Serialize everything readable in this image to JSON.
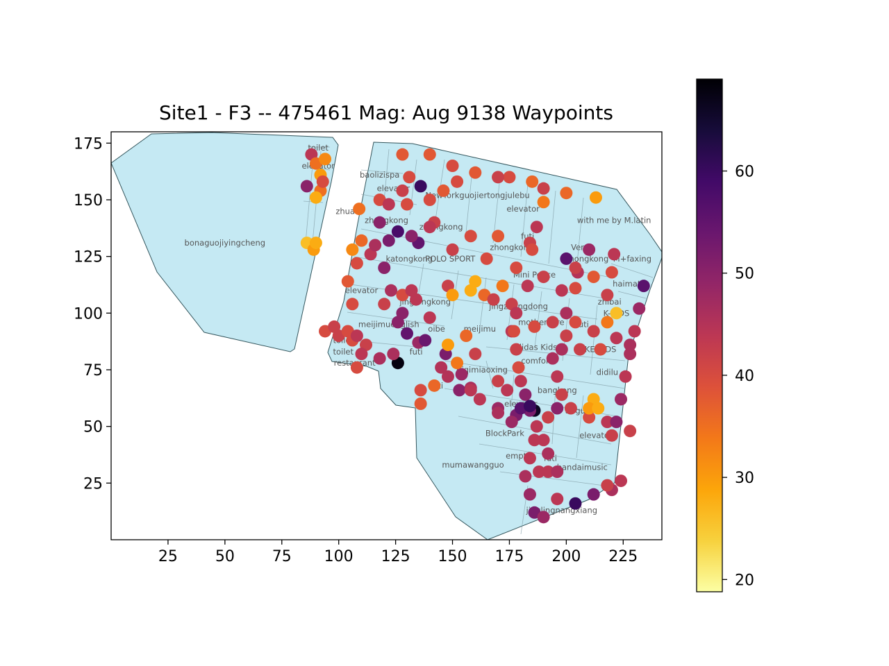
{
  "chart_data": {
    "type": "scatter",
    "title": "Site1 - F3 -- 475461 Mag: Aug 9138 Waypoints",
    "xlabel": "",
    "ylabel": "",
    "xlim": [
      0,
      242
    ],
    "ylim": [
      0,
      180
    ],
    "xticks": [
      25,
      50,
      75,
      100,
      125,
      150,
      175,
      200,
      225
    ],
    "yticks": [
      25,
      50,
      75,
      100,
      125,
      150,
      175
    ],
    "colorbar": {
      "colormap": "inferno_r",
      "range": [
        18.8,
        69.0
      ],
      "ticks": [
        20,
        30,
        40,
        50,
        60
      ]
    },
    "floor_plan_color": "#c5e9f3",
    "shop_labels": [
      {
        "text": "toilet",
        "x": 91,
        "y": 173
      },
      {
        "text": "elevator",
        "x": 91,
        "y": 165
      },
      {
        "text": "bonaguojiyingcheng",
        "x": 50,
        "y": 131
      },
      {
        "text": "baolizispa",
        "x": 118,
        "y": 161
      },
      {
        "text": "elevator",
        "x": 124,
        "y": 155
      },
      {
        "text": "NewYorkguojiertongjulebu",
        "x": 161,
        "y": 152
      },
      {
        "text": "elevator",
        "x": 181,
        "y": 146
      },
      {
        "text": "zhuan",
        "x": 104,
        "y": 145
      },
      {
        "text": "zhongkong",
        "x": 121,
        "y": 141
      },
      {
        "text": "zhongkong",
        "x": 145,
        "y": 138
      },
      {
        "text": "with me by M.latin",
        "x": 221,
        "y": 141
      },
      {
        "text": "futi",
        "x": 183,
        "y": 134
      },
      {
        "text": "zhongkong",
        "x": 176,
        "y": 129
      },
      {
        "text": "Vera",
        "x": 206,
        "y": 129
      },
      {
        "text": "zhongkong",
        "x": 209,
        "y": 124
      },
      {
        "text": "M+faxing",
        "x": 229,
        "y": 124
      },
      {
        "text": "katongkong",
        "x": 131,
        "y": 124
      },
      {
        "text": "POLO SPORT",
        "x": 149,
        "y": 124
      },
      {
        "text": "Mini Peace",
        "x": 186,
        "y": 117
      },
      {
        "text": "haimati",
        "x": 227,
        "y": 113
      },
      {
        "text": "elevator",
        "x": 110,
        "y": 110
      },
      {
        "text": "jinglongkong",
        "x": 138,
        "y": 105
      },
      {
        "text": "jingzhongdong",
        "x": 179,
        "y": 103
      },
      {
        "text": "zhibai",
        "x": 219,
        "y": 105
      },
      {
        "text": "meijimuenglish",
        "x": 122,
        "y": 95
      },
      {
        "text": "oibe",
        "x": 143,
        "y": 93
      },
      {
        "text": "meijimu",
        "x": 162,
        "y": 93
      },
      {
        "text": "mothercare",
        "x": 189,
        "y": 96
      },
      {
        "text": "futi",
        "x": 207,
        "y": 95
      },
      {
        "text": "K-KIDS",
        "x": 222,
        "y": 100
      },
      {
        "text": "toilet",
        "x": 102,
        "y": 88
      },
      {
        "text": "adidas Kids",
        "x": 186,
        "y": 85
      },
      {
        "text": "toilet",
        "x": 102,
        "y": 83
      },
      {
        "text": "futi",
        "x": 134,
        "y": 83
      },
      {
        "text": "MIKE KIDS",
        "x": 213,
        "y": 84
      },
      {
        "text": "restaurant",
        "x": 107,
        "y": 78
      },
      {
        "text": "comfort",
        "x": 187,
        "y": 79
      },
      {
        "text": "qiqimiaoxing",
        "x": 163,
        "y": 75
      },
      {
        "text": "didilu",
        "x": 218,
        "y": 74
      },
      {
        "text": "futi",
        "x": 143,
        "y": 68
      },
      {
        "text": "bangkong",
        "x": 196,
        "y": 66
      },
      {
        "text": "elevator",
        "x": 180,
        "y": 60
      },
      {
        "text": "tieguo",
        "x": 205,
        "y": 57
      },
      {
        "text": "BlockPark",
        "x": 173,
        "y": 47
      },
      {
        "text": "elevator",
        "x": 213,
        "y": 46
      },
      {
        "text": "empty",
        "x": 179,
        "y": 37
      },
      {
        "text": "futi",
        "x": 193,
        "y": 36
      },
      {
        "text": "bandaimusic",
        "x": 207,
        "y": 32
      },
      {
        "text": "mumawangguo",
        "x": 159,
        "y": 33
      },
      {
        "text": "jinglingnangxiang",
        "x": 198,
        "y": 13
      }
    ],
    "series": [
      {
        "waypoints": [
          [
            88,
            170,
            44
          ],
          [
            90,
            166,
            35
          ],
          [
            92,
            161,
            30
          ],
          [
            92,
            154,
            35
          ],
          [
            90,
            151,
            28
          ],
          [
            86,
            156,
            50
          ],
          [
            94,
            168,
            32
          ],
          [
            93,
            158,
            40
          ],
          [
            86,
            131,
            26
          ],
          [
            89,
            128,
            30
          ],
          [
            90,
            131,
            28
          ],
          [
            109,
            146,
            35
          ],
          [
            118,
            150,
            40
          ],
          [
            130,
            148,
            40
          ],
          [
            142,
            140,
            42
          ],
          [
            158,
            134,
            40
          ],
          [
            170,
            134,
            38
          ],
          [
            184,
            131,
            42
          ],
          [
            118,
            140,
            50
          ],
          [
            126,
            136,
            58
          ],
          [
            135,
            131,
            55
          ],
          [
            150,
            128,
            42
          ],
          [
            165,
            124,
            40
          ],
          [
            178,
            120,
            40
          ],
          [
            190,
            116,
            42
          ],
          [
            204,
            111,
            40
          ],
          [
            218,
            108,
            42
          ],
          [
            110,
            132,
            36
          ],
          [
            106,
            128,
            32
          ],
          [
            104,
            114,
            38
          ],
          [
            106,
            104,
            40
          ],
          [
            120,
            104,
            42
          ],
          [
            134,
            106,
            44
          ],
          [
            148,
            112,
            42
          ],
          [
            160,
            114,
            28
          ],
          [
            172,
            112,
            34
          ],
          [
            183,
            112,
            44
          ],
          [
            131,
            160,
            40
          ],
          [
            128,
            154,
            42
          ],
          [
            122,
            148,
            44
          ],
          [
            136,
            156,
            60
          ],
          [
            140,
            150,
            40
          ],
          [
            146,
            154,
            38
          ],
          [
            152,
            158,
            40
          ],
          [
            160,
            162,
            38
          ],
          [
            175,
            160,
            40
          ],
          [
            190,
            155,
            42
          ],
          [
            200,
            153,
            36
          ],
          [
            213,
            151,
            30
          ],
          [
            128,
            170,
            38
          ],
          [
            140,
            170,
            38
          ],
          [
            150,
            165,
            40
          ],
          [
            170,
            160,
            42
          ],
          [
            185,
            158,
            36
          ],
          [
            190,
            149,
            34
          ],
          [
            187,
            138,
            44
          ],
          [
            185,
            128,
            40
          ],
          [
            126,
            96,
            50
          ],
          [
            130,
            91,
            55
          ],
          [
            135,
            87,
            48
          ],
          [
            140,
            98,
            44
          ],
          [
            147,
            82,
            52
          ],
          [
            154,
            73,
            48
          ],
          [
            158,
            67,
            46
          ],
          [
            162,
            62,
            44
          ],
          [
            170,
            58,
            48
          ],
          [
            178,
            55,
            52
          ],
          [
            186,
            57,
            66
          ],
          [
            120,
            120,
            50
          ],
          [
            123,
            110,
            46
          ],
          [
            128,
            100,
            50
          ],
          [
            138,
            88,
            54
          ],
          [
            145,
            76,
            45
          ],
          [
            153,
            66,
            50
          ],
          [
            100,
            90,
            42
          ],
          [
            106,
            88,
            40
          ],
          [
            112,
            86,
            42
          ],
          [
            118,
            80,
            46
          ],
          [
            126,
            78,
            68
          ],
          [
            124,
            82,
            46
          ],
          [
            110,
            82,
            44
          ],
          [
            108,
            76,
            40
          ],
          [
            136,
            60,
            38
          ],
          [
            136,
            66,
            40
          ],
          [
            142,
            68,
            36
          ],
          [
            148,
            72,
            45
          ],
          [
            158,
            66,
            44
          ],
          [
            176,
            92,
            44
          ],
          [
            178,
            84,
            42
          ],
          [
            179,
            76,
            40
          ],
          [
            180,
            70,
            44
          ],
          [
            182,
            64,
            50
          ],
          [
            184,
            57,
            52
          ],
          [
            187,
            50,
            44
          ],
          [
            190,
            44,
            44
          ],
          [
            192,
            38,
            46
          ],
          [
            176,
            104,
            42
          ],
          [
            178,
            100,
            44
          ],
          [
            177,
            92,
            40
          ],
          [
            186,
            94,
            40
          ],
          [
            194,
            96,
            42
          ],
          [
            204,
            96,
            40
          ],
          [
            212,
            92,
            42
          ],
          [
            222,
            89,
            44
          ],
          [
            228,
            86,
            46
          ],
          [
            200,
            124,
            56
          ],
          [
            205,
            118,
            45
          ],
          [
            212,
            116,
            38
          ],
          [
            220,
            118,
            40
          ],
          [
            221,
            126,
            44
          ],
          [
            210,
            128,
            48
          ],
          [
            204,
            120,
            42
          ],
          [
            194,
            80,
            46
          ],
          [
            196,
            72,
            44
          ],
          [
            198,
            64,
            42
          ],
          [
            202,
            58,
            42
          ],
          [
            210,
            54,
            40
          ],
          [
            218,
            52,
            44
          ],
          [
            228,
            48,
            42
          ],
          [
            198,
            110,
            44
          ],
          [
            200,
            100,
            46
          ],
          [
            200,
            90,
            42
          ],
          [
            198,
            84,
            46
          ],
          [
            206,
            84,
            42
          ],
          [
            215,
            84,
            40
          ],
          [
            234,
            112,
            56
          ],
          [
            232,
            102,
            48
          ],
          [
            230,
            92,
            44
          ],
          [
            228,
            82,
            46
          ],
          [
            226,
            72,
            44
          ],
          [
            224,
            62,
            48
          ],
          [
            222,
            52,
            50
          ],
          [
            220,
            46,
            42
          ],
          [
            212,
            62,
            28
          ],
          [
            210,
            58,
            30
          ],
          [
            214,
            58,
            28
          ],
          [
            222,
            100,
            26
          ],
          [
            218,
            96,
            34
          ],
          [
            196,
            58,
            50
          ],
          [
            192,
            54,
            42
          ],
          [
            186,
            44,
            44
          ],
          [
            184,
            36,
            44
          ],
          [
            182,
            28,
            46
          ],
          [
            184,
            20,
            48
          ],
          [
            186,
            12,
            52
          ],
          [
            190,
            10,
            48
          ],
          [
            196,
            18,
            44
          ],
          [
            204,
            16,
            60
          ],
          [
            212,
            20,
            52
          ],
          [
            220,
            22,
            46
          ],
          [
            224,
            26,
            44
          ],
          [
            218,
            24,
            42
          ],
          [
            192,
            30,
            44
          ],
          [
            196,
            30,
            46
          ],
          [
            188,
            30,
            44
          ],
          [
            114,
            126,
            44
          ],
          [
            108,
            122,
            40
          ],
          [
            116,
            130,
            46
          ],
          [
            122,
            132,
            52
          ],
          [
            132,
            134,
            50
          ],
          [
            140,
            138,
            44
          ],
          [
            94,
            92,
            40
          ],
          [
            98,
            94,
            42
          ],
          [
            104,
            92,
            40
          ],
          [
            108,
            90,
            44
          ],
          [
            128,
            108,
            40
          ],
          [
            132,
            110,
            44
          ],
          [
            150,
            108,
            30
          ],
          [
            158,
            110,
            28
          ],
          [
            164,
            108,
            36
          ],
          [
            168,
            106,
            42
          ],
          [
            148,
            86,
            30
          ],
          [
            152,
            78,
            34
          ],
          [
            156,
            90,
            36
          ],
          [
            160,
            82,
            42
          ],
          [
            170,
            70,
            42
          ],
          [
            174,
            66,
            44
          ],
          [
            170,
            56,
            46
          ],
          [
            176,
            52,
            48
          ],
          [
            180,
            58,
            56
          ],
          [
            184,
            59,
            60
          ]
        ]
      }
    ]
  }
}
